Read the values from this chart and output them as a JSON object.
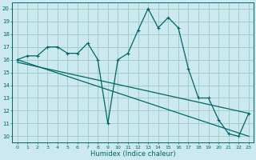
{
  "xlabel": "Humidex (Indice chaleur)",
  "bg_color": "#cce8f0",
  "grid_color": "#99ccbb",
  "line_color": "#006666",
  "xlim": [
    -0.5,
    23.5
  ],
  "ylim": [
    9.5,
    20.5
  ],
  "xticks": [
    0,
    1,
    2,
    3,
    4,
    5,
    6,
    7,
    8,
    9,
    10,
    11,
    12,
    13,
    14,
    15,
    16,
    17,
    18,
    19,
    20,
    21,
    22,
    23
  ],
  "yticks": [
    10,
    11,
    12,
    13,
    14,
    15,
    16,
    17,
    18,
    19,
    20
  ],
  "line1_x": [
    0,
    1,
    2,
    3,
    4,
    5,
    6,
    7,
    8,
    9,
    10,
    11,
    12,
    13,
    14,
    15,
    16,
    17,
    18,
    19,
    20,
    21,
    22,
    23
  ],
  "line1_y": [
    16.0,
    16.3,
    16.3,
    17.0,
    17.0,
    16.5,
    16.5,
    17.3,
    16.0,
    11.0,
    16.0,
    16.5,
    18.3,
    20.0,
    18.5,
    19.3,
    18.5,
    15.3,
    13.0,
    13.0,
    11.3,
    10.2,
    10.0,
    11.8
  ],
  "line2_x": [
    0,
    23
  ],
  "line2_y": [
    16.0,
    10.0
  ],
  "line3_x": [
    0,
    23
  ],
  "line3_y": [
    15.8,
    11.8
  ]
}
